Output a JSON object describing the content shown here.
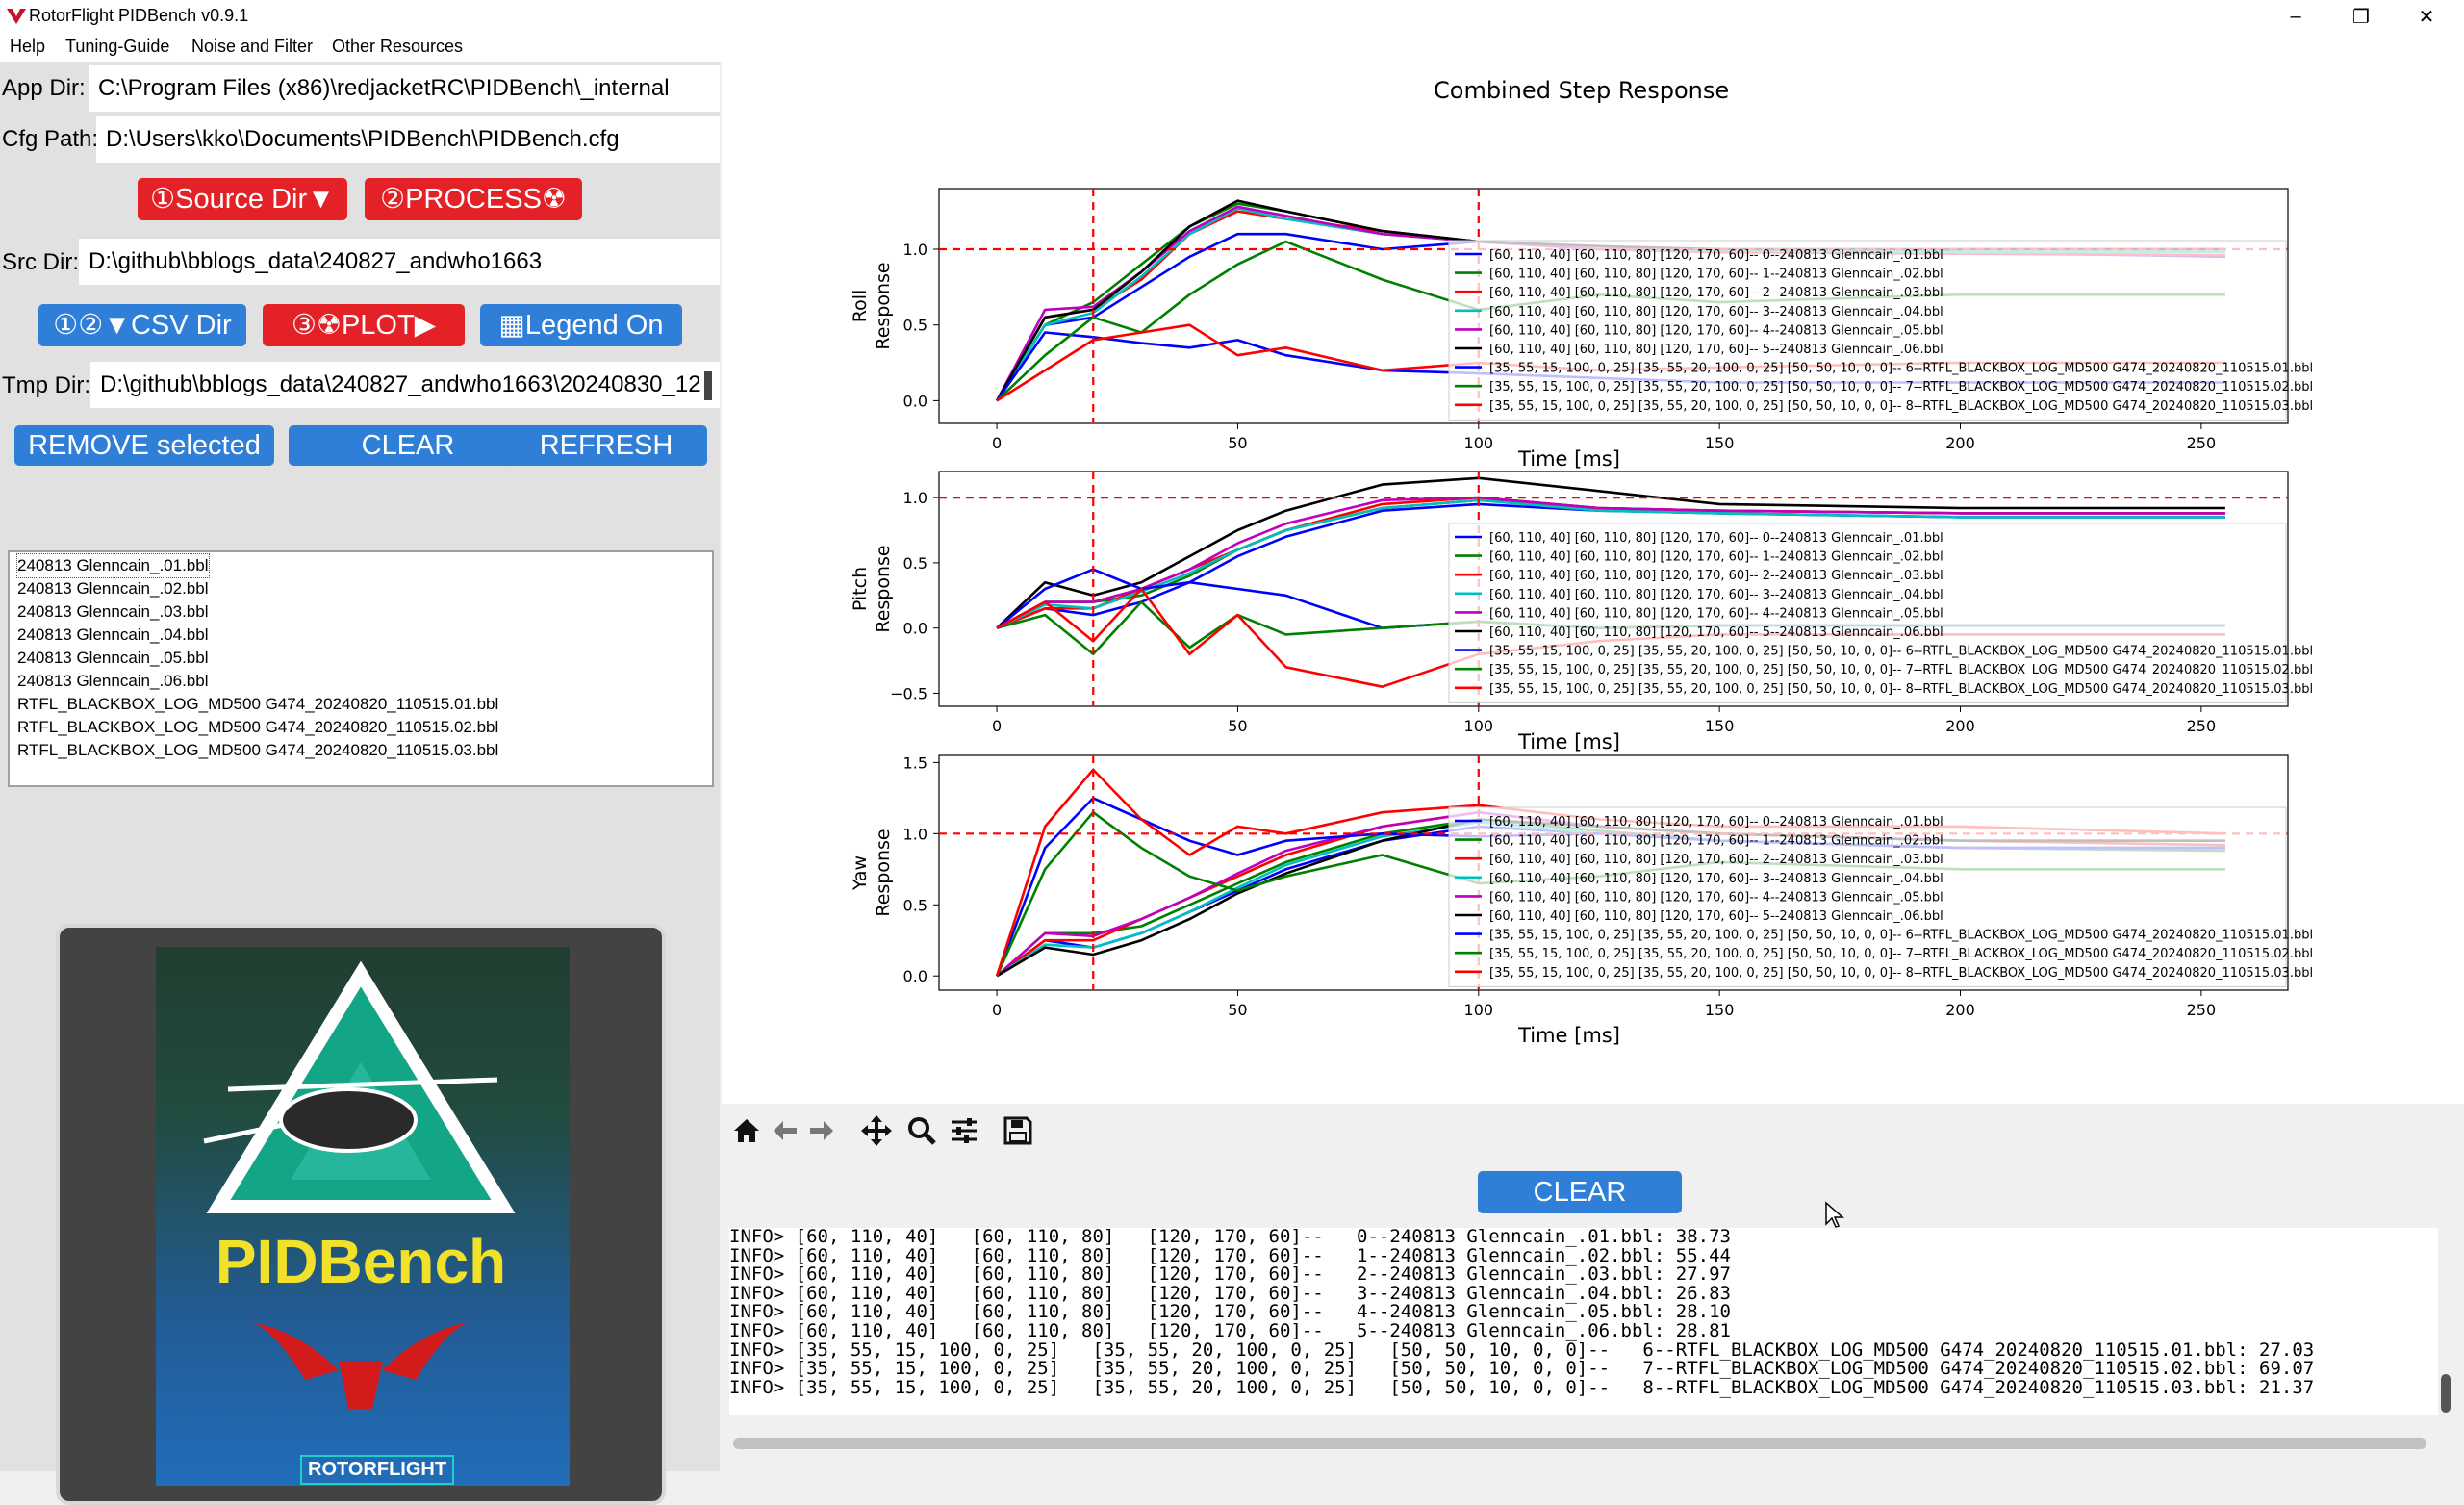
{
  "window": {
    "title": "RotorFlight PIDBench v0.9.1"
  },
  "menu": [
    "Help",
    "Tuning-Guide",
    "Noise and Filter",
    "Other Resources"
  ],
  "paths": {
    "app_dir_label": "App Dir:",
    "app_dir": "C:\\Program Files (x86)\\redjacketRC\\PIDBench\\_internal",
    "cfg_path_label": "Cfg Path:",
    "cfg_path": "D:\\Users\\kko\\Documents\\PIDBench\\PIDBench.cfg",
    "src_dir_label": "Src Dir:",
    "src_dir": "D:\\github\\bblogs_data\\240827_andwho1663",
    "tmp_dir_label": "Tmp Dir:",
    "tmp_dir": "D:\\github\\bblogs_data\\240827_andwho1663\\20240830_12"
  },
  "buttons": {
    "source_dir": "①Source Dir▼",
    "process": "②PROCESS☢",
    "csv_dir": "①②▼CSV Dir",
    "plot": "③☢PLOT▶",
    "legend": "▦Legend On",
    "remove": "REMOVE selected",
    "clear": "CLEAR",
    "refresh": "REFRESH",
    "clear_log": "CLEAR"
  },
  "files": [
    "240813 Glenncain_.01.bbl",
    "240813 Glenncain_.02.bbl",
    "240813 Glenncain_.03.bbl",
    "240813 Glenncain_.04.bbl",
    "240813 Glenncain_.05.bbl",
    "240813 Glenncain_.06.bbl",
    "RTFL_BLACKBOX_LOG_MD500 G474_20240820_110515.01.bbl",
    "RTFL_BLACKBOX_LOG_MD500 G474_20240820_110515.02.bbl",
    "RTFL_BLACKBOX_LOG_MD500 G474_20240820_110515.03.bbl"
  ],
  "logo": {
    "word": "PIDBench",
    "brand": "ROTORFLIGHT"
  },
  "log_lines": [
    "INFO> [60, 110, 40]   [60, 110, 80]   [120, 170, 60]--   0--240813 Glenncain_.01.bbl: 38.73",
    "INFO> [60, 110, 40]   [60, 110, 80]   [120, 170, 60]--   1--240813 Glenncain_.02.bbl: 55.44",
    "INFO> [60, 110, 40]   [60, 110, 80]   [120, 170, 60]--   2--240813 Glenncain_.03.bbl: 27.97",
    "INFO> [60, 110, 40]   [60, 110, 80]   [120, 170, 60]--   3--240813 Glenncain_.04.bbl: 26.83",
    "INFO> [60, 110, 40]   [60, 110, 80]   [120, 170, 60]--   4--240813 Glenncain_.05.bbl: 28.10",
    "INFO> [60, 110, 40]   [60, 110, 80]   [120, 170, 60]--   5--240813 Glenncain_.06.bbl: 28.81",
    "INFO> [35, 55, 15, 100, 0, 25]   [35, 55, 20, 100, 0, 25]   [50, 50, 10, 0, 0]--   6--RTFL_BLACKBOX_LOG_MD500 G474_20240820_110515.01.bbl: 27.03",
    "INFO> [35, 55, 15, 100, 0, 25]   [35, 55, 20, 100, 0, 25]   [50, 50, 10, 0, 0]--   7--RTFL_BLACKBOX_LOG_MD500 G474_20240820_110515.02.bbl: 69.07",
    "INFO> [35, 55, 15, 100, 0, 25]   [35, 55, 20, 100, 0, 25]   [50, 50, 10, 0, 0]--   8--RTFL_BLACKBOX_LOG_MD500 G474_20240820_110515.03.bbl: 21.37"
  ],
  "colors": {
    "series": [
      "#0000ff",
      "#008000",
      "#ff0000",
      "#00bfbf",
      "#bf00bf",
      "#000000"
    ],
    "button_red": "#e32127",
    "button_blue": "#2f7fd8",
    "reference_line": "#ff0000"
  },
  "chart_data": [
    {
      "type": "line",
      "title": "Combined Step Response",
      "ylabel": "Roll\nResponse",
      "xlabel": "Time [ms]",
      "xlim": [
        -12,
        268
      ],
      "ylim": [
        -0.15,
        1.4
      ],
      "xticks": [
        0,
        50,
        100,
        150,
        200,
        250
      ],
      "yticks": [
        0.0,
        0.5,
        1.0
      ],
      "ytick_labels": [
        "0.0",
        "0.5",
        "1.0"
      ],
      "reference": {
        "y": 1.0,
        "x": [
          20,
          100
        ]
      },
      "legend_placement": "lower-right",
      "legend": [
        "[60, 110, 40]  [60, 110, 80]  [120, 170, 60]--  0--240813 Glenncain_.01.bbl",
        "[60, 110, 40]  [60, 110, 80]  [120, 170, 60]--  1--240813 Glenncain_.02.bbl",
        "[60, 110, 40]  [60, 110, 80]  [120, 170, 60]--  2--240813 Glenncain_.03.bbl",
        "[60, 110, 40]  [60, 110, 80]  [120, 170, 60]--  3--240813 Glenncain_.04.bbl",
        "[60, 110, 40]  [60, 110, 80]  [120, 170, 60]--  4--240813 Glenncain_.05.bbl",
        "[60, 110, 40]  [60, 110, 80]  [120, 170, 60]--  5--240813 Glenncain_.06.bbl",
        "[35, 55, 15, 100, 0, 25]  [35, 55, 20, 100, 0, 25]  [50, 50, 10, 0, 0]--  6--RTFL_BLACKBOX_LOG_MD500 G474_20240820_110515.01.bbl",
        "[35, 55, 15, 100, 0, 25]  [35, 55, 20, 100, 0, 25]  [50, 50, 10, 0, 0]--  7--RTFL_BLACKBOX_LOG_MD500 G474_20240820_110515.02.bbl",
        "[35, 55, 15, 100, 0, 25]  [35, 55, 20, 100, 0, 25]  [50, 50, 10, 0, 0]--  8--RTFL_BLACKBOX_LOG_MD500 G474_20240820_110515.03.bbl"
      ],
      "legend_colors": [
        "#0000ff",
        "#008000",
        "#ff0000",
        "#00bfbf",
        "#bf00bf",
        "#000000",
        "#0000ff",
        "#008000",
        "#ff0000"
      ],
      "x": [
        0,
        10,
        20,
        30,
        40,
        50,
        60,
        80,
        100,
        125,
        150,
        200,
        255
      ],
      "series": [
        {
          "color": "#0000ff",
          "values": [
            0.0,
            0.5,
            0.55,
            0.75,
            0.95,
            1.1,
            1.1,
            1.0,
            1.05,
            1.0,
            1.0,
            0.98,
            0.95
          ]
        },
        {
          "color": "#008000",
          "values": [
            0.0,
            0.5,
            0.65,
            0.9,
            1.15,
            1.3,
            1.25,
            1.12,
            1.05,
            1.0,
            0.98,
            1.0,
            1.0
          ]
        },
        {
          "color": "#ff0000",
          "values": [
            0.0,
            0.55,
            0.6,
            0.8,
            1.1,
            1.25,
            1.2,
            1.12,
            1.05,
            1.0,
            0.98,
            0.97,
            0.96
          ]
        },
        {
          "color": "#00bfbf",
          "values": [
            0.0,
            0.5,
            0.58,
            0.82,
            1.1,
            1.27,
            1.2,
            1.1,
            1.05,
            1.0,
            0.99,
            0.98,
            0.98
          ]
        },
        {
          "color": "#bf00bf",
          "values": [
            0.0,
            0.6,
            0.62,
            0.85,
            1.12,
            1.28,
            1.22,
            1.1,
            1.05,
            1.0,
            1.0,
            1.0,
            1.0
          ]
        },
        {
          "color": "#000000",
          "values": [
            0.0,
            0.55,
            0.6,
            0.85,
            1.15,
            1.32,
            1.25,
            1.12,
            1.05,
            1.02,
            1.0,
            1.0,
            1.0
          ]
        },
        {
          "color": "#0000ff",
          "values": [
            0.0,
            0.45,
            0.42,
            0.38,
            0.35,
            0.4,
            0.3,
            0.2,
            0.18,
            0.15,
            0.12,
            0.12,
            0.12
          ]
        },
        {
          "color": "#008000",
          "values": [
            0.0,
            0.3,
            0.55,
            0.45,
            0.7,
            0.9,
            1.05,
            0.8,
            0.6,
            0.7,
            0.65,
            0.7,
            0.7
          ]
        },
        {
          "color": "#ff0000",
          "values": [
            0.0,
            0.2,
            0.4,
            0.45,
            0.5,
            0.3,
            0.35,
            0.2,
            0.25,
            0.2,
            0.22,
            0.25,
            0.25
          ]
        }
      ]
    },
    {
      "type": "line",
      "ylabel": "Pitch\nResponse",
      "xlabel": "Time [ms]",
      "xlim": [
        -12,
        268
      ],
      "ylim": [
        -0.6,
        1.2
      ],
      "xticks": [
        0,
        50,
        100,
        150,
        200,
        250
      ],
      "yticks": [
        -0.5,
        0.0,
        0.5,
        1.0
      ],
      "ytick_labels": [
        "−0.5",
        "0.0",
        "0.5",
        "1.0"
      ],
      "reference": {
        "y": 1.0,
        "x": [
          20,
          100
        ]
      },
      "legend_placement": "lower-right",
      "legend": [
        "[60, 110, 40]  [60, 110, 80]  [120, 170, 60]--  0--240813 Glenncain_.01.bbl",
        "[60, 110, 40]  [60, 110, 80]  [120, 170, 60]--  1--240813 Glenncain_.02.bbl",
        "[60, 110, 40]  [60, 110, 80]  [120, 170, 60]--  2--240813 Glenncain_.03.bbl",
        "[60, 110, 40]  [60, 110, 80]  [120, 170, 60]--  3--240813 Glenncain_.04.bbl",
        "[60, 110, 40]  [60, 110, 80]  [120, 170, 60]--  4--240813 Glenncain_.05.bbl",
        "[60, 110, 40]  [60, 110, 80]  [120, 170, 60]--  5--240813 Glenncain_.06.bbl",
        "[35, 55, 15, 100, 0, 25]  [35, 55, 20, 100, 0, 25]  [50, 50, 10, 0, 0]--  6--RTFL_BLACKBOX_LOG_MD500 G474_20240820_110515.01.bbl",
        "[35, 55, 15, 100, 0, 25]  [35, 55, 20, 100, 0, 25]  [50, 50, 10, 0, 0]--  7--RTFL_BLACKBOX_LOG_MD500 G474_20240820_110515.02.bbl",
        "[35, 55, 15, 100, 0, 25]  [35, 55, 20, 100, 0, 25]  [50, 50, 10, 0, 0]--  8--RTFL_BLACKBOX_LOG_MD500 G474_20240820_110515.03.bbl"
      ],
      "legend_colors": [
        "#0000ff",
        "#008000",
        "#ff0000",
        "#00bfbf",
        "#bf00bf",
        "#000000",
        "#0000ff",
        "#008000",
        "#ff0000"
      ],
      "x": [
        0,
        10,
        20,
        30,
        40,
        50,
        60,
        80,
        100,
        125,
        150,
        200,
        255
      ],
      "series": [
        {
          "color": "#0000ff",
          "values": [
            0.0,
            0.15,
            0.1,
            0.2,
            0.35,
            0.55,
            0.7,
            0.9,
            0.95,
            0.9,
            0.88,
            0.85,
            0.85
          ]
        },
        {
          "color": "#008000",
          "values": [
            0.0,
            0.2,
            0.2,
            0.25,
            0.4,
            0.6,
            0.75,
            0.92,
            0.98,
            0.92,
            0.9,
            0.88,
            0.88
          ]
        },
        {
          "color": "#ff0000",
          "values": [
            0.0,
            0.15,
            0.15,
            0.3,
            0.45,
            0.6,
            0.75,
            0.95,
            1.0,
            0.92,
            0.9,
            0.88,
            0.88
          ]
        },
        {
          "color": "#00bfbf",
          "values": [
            0.0,
            0.18,
            0.15,
            0.28,
            0.42,
            0.6,
            0.75,
            0.92,
            0.98,
            0.9,
            0.88,
            0.85,
            0.85
          ]
        },
        {
          "color": "#bf00bf",
          "values": [
            0.0,
            0.2,
            0.2,
            0.3,
            0.45,
            0.65,
            0.8,
            0.98,
            1.0,
            0.92,
            0.9,
            0.88,
            0.88
          ]
        },
        {
          "color": "#000000",
          "values": [
            0.0,
            0.35,
            0.25,
            0.35,
            0.55,
            0.75,
            0.9,
            1.1,
            1.15,
            1.05,
            0.95,
            0.92,
            0.92
          ]
        },
        {
          "color": "#0000ff",
          "values": [
            0.0,
            0.3,
            0.45,
            0.3,
            0.35,
            0.3,
            0.25,
            0.0,
            0.05,
            0.0,
            0.02,
            0.02,
            0.02
          ]
        },
        {
          "color": "#008000",
          "values": [
            0.0,
            0.1,
            -0.2,
            0.2,
            -0.15,
            0.1,
            -0.05,
            0.0,
            0.05,
            0.0,
            0.02,
            0.02,
            0.02
          ]
        },
        {
          "color": "#ff0000",
          "values": [
            0.0,
            0.2,
            -0.1,
            0.3,
            -0.2,
            0.1,
            -0.3,
            -0.45,
            -0.2,
            -0.1,
            -0.05,
            -0.05,
            -0.05
          ]
        }
      ]
    },
    {
      "type": "line",
      "ylabel": "Yaw\nResponse",
      "xlabel": "Time [ms]",
      "xlim": [
        -12,
        268
      ],
      "ylim": [
        -0.1,
        1.55
      ],
      "xticks": [
        0,
        50,
        100,
        150,
        200,
        250
      ],
      "yticks": [
        0.0,
        0.5,
        1.0,
        1.5
      ],
      "ytick_labels": [
        "0.0",
        "0.5",
        "1.0",
        "1.5"
      ],
      "reference": {
        "y": 1.0,
        "x": [
          20,
          100
        ]
      },
      "legend_placement": "lower-right",
      "legend": [
        "[60, 110, 40]  [60, 110, 80]  [120, 170, 60]--  0--240813 Glenncain_.01.bbl",
        "[60, 110, 40]  [60, 110, 80]  [120, 170, 60]--  1--240813 Glenncain_.02.bbl",
        "[60, 110, 40]  [60, 110, 80]  [120, 170, 60]--  2--240813 Glenncain_.03.bbl",
        "[60, 110, 40]  [60, 110, 80]  [120, 170, 60]--  3--240813 Glenncain_.04.bbl",
        "[60, 110, 40]  [60, 110, 80]  [120, 170, 60]--  4--240813 Glenncain_.05.bbl",
        "[60, 110, 40]  [60, 110, 80]  [120, 170, 60]--  5--240813 Glenncain_.06.bbl",
        "[35, 55, 15, 100, 0, 25]  [35, 55, 20, 100, 0, 25]  [50, 50, 10, 0, 0]--  6--RTFL_BLACKBOX_LOG_MD500 G474_20240820_110515.01.bbl",
        "[35, 55, 15, 100, 0, 25]  [35, 55, 20, 100, 0, 25]  [50, 50, 10, 0, 0]--  7--RTFL_BLACKBOX_LOG_MD500 G474_20240820_110515.02.bbl",
        "[35, 55, 15, 100, 0, 25]  [35, 55, 20, 100, 0, 25]  [50, 50, 10, 0, 0]--  8--RTFL_BLACKBOX_LOG_MD500 G474_20240820_110515.03.bbl"
      ],
      "legend_colors": [
        "#0000ff",
        "#008000",
        "#ff0000",
        "#00bfbf",
        "#bf00bf",
        "#000000",
        "#0000ff",
        "#008000",
        "#ff0000"
      ],
      "x": [
        0,
        10,
        20,
        30,
        40,
        50,
        60,
        80,
        100,
        125,
        150,
        200,
        255
      ],
      "series": [
        {
          "color": "#0000ff",
          "values": [
            0.0,
            0.25,
            0.2,
            0.3,
            0.45,
            0.6,
            0.75,
            0.95,
            1.05,
            1.0,
            0.95,
            0.9,
            0.9
          ]
        },
        {
          "color": "#008000",
          "values": [
            0.0,
            0.3,
            0.3,
            0.35,
            0.5,
            0.65,
            0.8,
            1.0,
            1.1,
            1.02,
            0.95,
            0.9,
            0.88
          ]
        },
        {
          "color": "#ff0000",
          "values": [
            0.0,
            0.25,
            0.25,
            0.4,
            0.55,
            0.7,
            0.85,
            1.05,
            1.15,
            1.05,
            1.0,
            0.95,
            0.92
          ]
        },
        {
          "color": "#00bfbf",
          "values": [
            0.0,
            0.22,
            0.2,
            0.3,
            0.45,
            0.62,
            0.78,
            0.98,
            1.08,
            1.0,
            0.95,
            0.9,
            0.9
          ]
        },
        {
          "color": "#bf00bf",
          "values": [
            0.0,
            0.3,
            0.28,
            0.4,
            0.55,
            0.72,
            0.88,
            1.05,
            1.15,
            1.05,
            1.0,
            0.95,
            0.95
          ]
        },
        {
          "color": "#000000",
          "values": [
            0.0,
            0.2,
            0.15,
            0.25,
            0.4,
            0.58,
            0.72,
            0.95,
            1.1,
            1.05,
            1.0,
            0.95,
            0.95
          ]
        },
        {
          "color": "#0000ff",
          "values": [
            0.0,
            0.9,
            1.25,
            1.1,
            0.95,
            0.85,
            0.95,
            1.0,
            0.98,
            1.0,
            0.95,
            0.9,
            0.9
          ]
        },
        {
          "color": "#008000",
          "values": [
            0.0,
            0.75,
            1.15,
            0.9,
            0.7,
            0.6,
            0.7,
            0.85,
            0.65,
            0.7,
            0.8,
            0.75,
            0.75
          ]
        },
        {
          "color": "#ff0000",
          "values": [
            0.0,
            1.05,
            1.45,
            1.1,
            0.85,
            1.05,
            1.0,
            1.15,
            1.2,
            1.1,
            1.05,
            1.05,
            1.0
          ]
        }
      ]
    }
  ]
}
